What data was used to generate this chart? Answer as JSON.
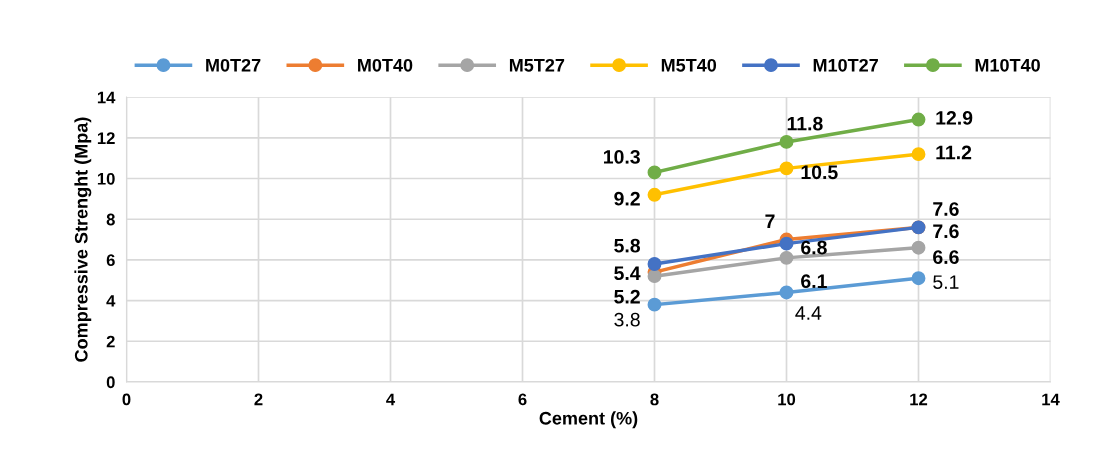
{
  "chart_data": {
    "type": "line",
    "xlabel": "Cement (%)",
    "ylabel": "Compressive Strenght (Mpa)",
    "x": [
      8,
      10,
      12
    ],
    "series": [
      {
        "name": "M0T27",
        "color": "#5b9bd5",
        "values": [
          3.8,
          4.4,
          5.1
        ]
      },
      {
        "name": "M0T40",
        "color": "#ed7d31",
        "values": [
          5.4,
          7,
          7.6
        ]
      },
      {
        "name": "M5T27",
        "color": "#a5a5a5",
        "values": [
          5.2,
          6.1,
          6.6
        ]
      },
      {
        "name": "M5T40",
        "color": "#ffc000",
        "values": [
          9.2,
          10.5,
          11.2
        ]
      },
      {
        "name": "M10T27",
        "color": "#4472c4",
        "values": [
          5.8,
          6.8,
          7.6
        ]
      },
      {
        "name": "M10T40",
        "color": "#70ad47",
        "values": [
          10.3,
          11.8,
          12.9
        ]
      }
    ],
    "xlim": [
      0,
      14
    ],
    "xticks": [
      0,
      2,
      4,
      6,
      8,
      10,
      12,
      14
    ],
    "ylim": [
      0,
      14
    ],
    "yticks": [
      0,
      2,
      4,
      6,
      8,
      10,
      12,
      14
    ],
    "grid": true,
    "legend": "top",
    "marker": "circle",
    "line_style": "solid",
    "data_labels": true
  }
}
